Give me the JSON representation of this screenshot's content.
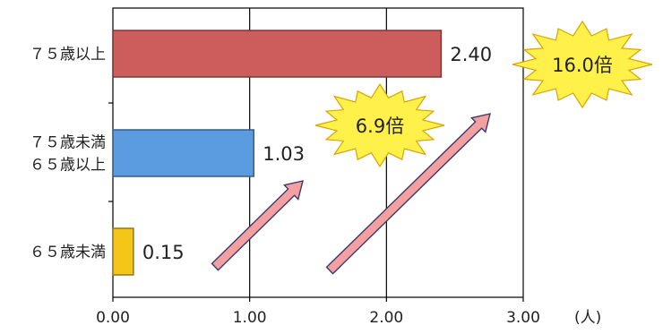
{
  "chart_data": {
    "type": "bar",
    "orientation": "horizontal",
    "categories": [
      [
        "７５歳以上"
      ],
      [
        "７５歳未満",
        "６５歳以上"
      ],
      [
        "６５歳未満"
      ]
    ],
    "values": [
      2.4,
      1.03,
      0.15
    ],
    "value_labels": [
      "2.40",
      "1.03",
      "0.15"
    ],
    "bar_colors": [
      "#CD5C5C",
      "#5B9BE0",
      "#F5C518"
    ],
    "x_ticks": [
      "0.00",
      "1.00",
      "2.00",
      "3.00"
    ],
    "x_unit": "(人)",
    "xlim": [
      0,
      3
    ],
    "grid": true,
    "annotations": [
      {
        "text": "6.9倍",
        "type": "starburst",
        "color": "#FFF14A"
      },
      {
        "text": "16.0倍",
        "type": "starburst",
        "color": "#FFF14A"
      }
    ],
    "arrow_color": "#F4A0A0"
  }
}
